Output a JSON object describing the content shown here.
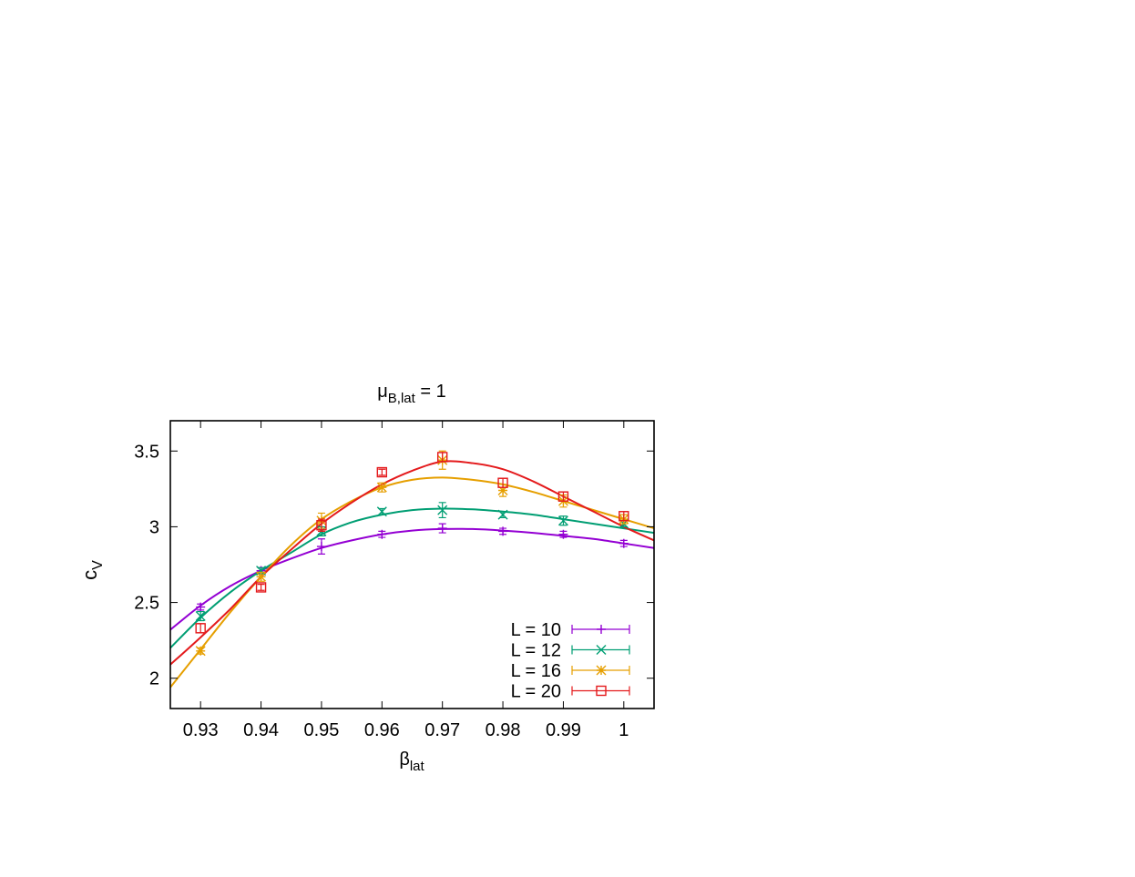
{
  "chart_data": {
    "type": "line",
    "title": {
      "main": "μ",
      "sub": "B,lat",
      "rest": " = 1"
    },
    "xlabel": {
      "main": "β",
      "sub": "lat"
    },
    "ylabel": {
      "main": "c",
      "sub": "V"
    },
    "xlim": [
      0.925,
      1.005
    ],
    "ylim": [
      1.8,
      3.7
    ],
    "xticks": [
      0.93,
      0.94,
      0.95,
      0.96,
      0.97,
      0.98,
      0.99,
      1.0
    ],
    "xtick_labels": [
      "0.93",
      "0.94",
      "0.95",
      "0.96",
      "0.97",
      "0.98",
      "0.99",
      "1"
    ],
    "yticks": [
      2.0,
      2.5,
      3.0,
      3.5
    ],
    "ytick_labels": [
      "2",
      "2.5",
      "3",
      "3.5"
    ],
    "grid": false,
    "legend_position": "bottom-right",
    "series": [
      {
        "name": "L = 10",
        "color": "#9400d3",
        "marker": "plus",
        "points": [
          {
            "x": 0.93,
            "y": 2.47,
            "err": 0.02
          },
          {
            "x": 0.94,
            "y": 2.71,
            "err": 0.02
          },
          {
            "x": 0.95,
            "y": 2.87,
            "err": 0.05
          },
          {
            "x": 0.96,
            "y": 2.95,
            "err": 0.02
          },
          {
            "x": 0.97,
            "y": 2.99,
            "err": 0.03
          },
          {
            "x": 0.98,
            "y": 2.97,
            "err": 0.02
          },
          {
            "x": 0.99,
            "y": 2.95,
            "err": 0.02
          },
          {
            "x": 1.0,
            "y": 2.89,
            "err": 0.02
          }
        ],
        "fit": [
          {
            "x": 0.925,
            "y": 2.32
          },
          {
            "x": 0.93,
            "y": 2.48
          },
          {
            "x": 0.935,
            "y": 2.61
          },
          {
            "x": 0.94,
            "y": 2.71
          },
          {
            "x": 0.945,
            "y": 2.79
          },
          {
            "x": 0.95,
            "y": 2.86
          },
          {
            "x": 0.955,
            "y": 2.91
          },
          {
            "x": 0.96,
            "y": 2.95
          },
          {
            "x": 0.965,
            "y": 2.975
          },
          {
            "x": 0.97,
            "y": 2.985
          },
          {
            "x": 0.975,
            "y": 2.985
          },
          {
            "x": 0.98,
            "y": 2.975
          },
          {
            "x": 0.985,
            "y": 2.96
          },
          {
            "x": 0.99,
            "y": 2.94
          },
          {
            "x": 0.995,
            "y": 2.92
          },
          {
            "x": 1.0,
            "y": 2.89
          },
          {
            "x": 1.005,
            "y": 2.86
          }
        ]
      },
      {
        "name": "L = 12",
        "color": "#009e73",
        "marker": "cross",
        "points": [
          {
            "x": 0.93,
            "y": 2.41,
            "err": 0.03
          },
          {
            "x": 0.94,
            "y": 2.71,
            "err": 0.02
          },
          {
            "x": 0.95,
            "y": 2.97,
            "err": 0.03
          },
          {
            "x": 0.96,
            "y": 3.1,
            "err": 0.02
          },
          {
            "x": 0.97,
            "y": 3.11,
            "err": 0.05
          },
          {
            "x": 0.98,
            "y": 3.08,
            "err": 0.02
          },
          {
            "x": 0.99,
            "y": 3.04,
            "err": 0.03
          },
          {
            "x": 1.0,
            "y": 3.02,
            "err": 0.02
          }
        ],
        "fit": [
          {
            "x": 0.925,
            "y": 2.2
          },
          {
            "x": 0.93,
            "y": 2.4
          },
          {
            "x": 0.935,
            "y": 2.57
          },
          {
            "x": 0.94,
            "y": 2.71
          },
          {
            "x": 0.945,
            "y": 2.83
          },
          {
            "x": 0.95,
            "y": 2.95
          },
          {
            "x": 0.955,
            "y": 3.03
          },
          {
            "x": 0.96,
            "y": 3.08
          },
          {
            "x": 0.965,
            "y": 3.11
          },
          {
            "x": 0.97,
            "y": 3.12
          },
          {
            "x": 0.975,
            "y": 3.115
          },
          {
            "x": 0.98,
            "y": 3.1
          },
          {
            "x": 0.985,
            "y": 3.08
          },
          {
            "x": 0.99,
            "y": 3.05
          },
          {
            "x": 0.995,
            "y": 3.02
          },
          {
            "x": 1.0,
            "y": 2.99
          },
          {
            "x": 1.005,
            "y": 2.96
          }
        ]
      },
      {
        "name": "L = 16",
        "color": "#e69f00",
        "marker": "star",
        "points": [
          {
            "x": 0.93,
            "y": 2.18,
            "err": 0.02
          },
          {
            "x": 0.94,
            "y": 2.67,
            "err": 0.03
          },
          {
            "x": 0.95,
            "y": 3.04,
            "err": 0.05
          },
          {
            "x": 0.96,
            "y": 3.26,
            "err": 0.03
          },
          {
            "x": 0.97,
            "y": 3.44,
            "err": 0.06
          },
          {
            "x": 0.98,
            "y": 3.24,
            "err": 0.04
          },
          {
            "x": 0.99,
            "y": 3.17,
            "err": 0.04
          },
          {
            "x": 1.0,
            "y": 3.05,
            "err": 0.03
          }
        ],
        "fit": [
          {
            "x": 0.925,
            "y": 1.94
          },
          {
            "x": 0.93,
            "y": 2.19
          },
          {
            "x": 0.935,
            "y": 2.44
          },
          {
            "x": 0.94,
            "y": 2.67
          },
          {
            "x": 0.945,
            "y": 2.88
          },
          {
            "x": 0.95,
            "y": 3.05
          },
          {
            "x": 0.955,
            "y": 3.17
          },
          {
            "x": 0.96,
            "y": 3.26
          },
          {
            "x": 0.965,
            "y": 3.31
          },
          {
            "x": 0.97,
            "y": 3.325
          },
          {
            "x": 0.975,
            "y": 3.31
          },
          {
            "x": 0.98,
            "y": 3.28
          },
          {
            "x": 0.985,
            "y": 3.23
          },
          {
            "x": 0.99,
            "y": 3.17
          },
          {
            "x": 0.995,
            "y": 3.11
          },
          {
            "x": 1.0,
            "y": 3.05
          },
          {
            "x": 1.005,
            "y": 2.99
          }
        ]
      },
      {
        "name": "L = 20",
        "color": "#e41a1c",
        "marker": "open-square",
        "points": [
          {
            "x": 0.93,
            "y": 2.33,
            "err": 0.03
          },
          {
            "x": 0.94,
            "y": 2.6,
            "err": 0.02
          },
          {
            "x": 0.95,
            "y": 3.01,
            "err": 0.04
          },
          {
            "x": 0.96,
            "y": 3.36,
            "err": 0.02
          },
          {
            "x": 0.97,
            "y": 3.46,
            "err": 0.03
          },
          {
            "x": 0.98,
            "y": 3.29,
            "err": 0.03
          },
          {
            "x": 0.99,
            "y": 3.2,
            "err": 0.03
          },
          {
            "x": 1.0,
            "y": 3.07,
            "err": 0.03
          }
        ],
        "fit": [
          {
            "x": 0.925,
            "y": 2.09
          },
          {
            "x": 0.93,
            "y": 2.27
          },
          {
            "x": 0.935,
            "y": 2.46
          },
          {
            "x": 0.94,
            "y": 2.67
          },
          {
            "x": 0.945,
            "y": 2.85
          },
          {
            "x": 0.95,
            "y": 3.02
          },
          {
            "x": 0.955,
            "y": 3.16
          },
          {
            "x": 0.96,
            "y": 3.28
          },
          {
            "x": 0.965,
            "y": 3.37
          },
          {
            "x": 0.97,
            "y": 3.43
          },
          {
            "x": 0.975,
            "y": 3.42
          },
          {
            "x": 0.98,
            "y": 3.38
          },
          {
            "x": 0.985,
            "y": 3.3
          },
          {
            "x": 0.99,
            "y": 3.2
          },
          {
            "x": 0.995,
            "y": 3.1
          },
          {
            "x": 1.0,
            "y": 3.0
          },
          {
            "x": 1.005,
            "y": 2.91
          }
        ]
      }
    ]
  }
}
